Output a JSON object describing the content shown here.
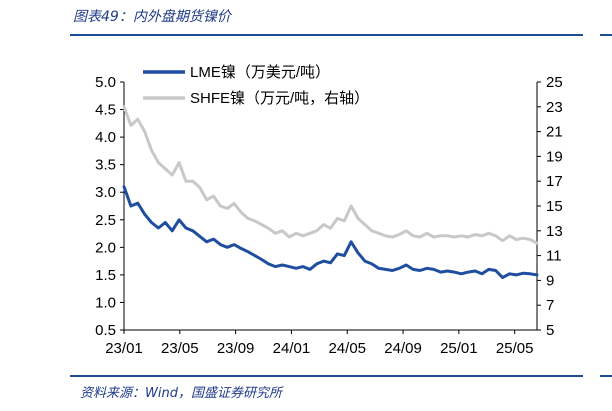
{
  "header": {
    "title": "图表49：内外盘期货镍价"
  },
  "footer": {
    "source": "资料来源：Wind，国盛证券研究所"
  },
  "chart_data": {
    "type": "line",
    "title": "图表49：内外盘期货镍价",
    "categories": [
      "23/01",
      "23/05",
      "23/09",
      "24/01",
      "24/05",
      "24/09",
      "25/01",
      "25/05"
    ],
    "x_range": [
      0,
      30
    ],
    "y_left": {
      "min": 0.5,
      "max": 5.0,
      "ticks": [
        "5.0",
        "4.5",
        "4.0",
        "3.5",
        "3.0",
        "2.5",
        "2.0",
        "1.5",
        "1.0",
        "0.5"
      ]
    },
    "y_right": {
      "min": 5,
      "max": 25,
      "ticks": [
        "25",
        "23",
        "21",
        "19",
        "17",
        "15",
        "13",
        "11",
        "9",
        "7",
        "5"
      ]
    },
    "grid": false,
    "legend_position": "top-left",
    "series": [
      {
        "name": "LME镍（万美元/吨）",
        "axis": "left",
        "color": "#1f4ea0",
        "x": [
          0,
          0.5,
          1,
          1.5,
          2,
          2.5,
          3,
          3.5,
          4,
          4.5,
          5,
          5.5,
          6,
          6.5,
          7,
          7.5,
          8,
          8.5,
          9,
          9.5,
          10,
          10.5,
          11,
          11.5,
          12,
          12.5,
          13,
          13.5,
          14,
          14.5,
          15,
          15.5,
          16,
          16.5,
          17,
          17.5,
          18,
          18.5,
          19,
          19.5,
          20,
          20.5,
          21,
          21.5,
          22,
          22.5,
          23,
          23.5,
          24,
          24.5,
          25,
          25.5,
          26,
          26.5,
          27,
          27.5,
          28,
          28.5,
          29,
          29.5,
          30
        ],
        "values": [
          3.1,
          2.75,
          2.8,
          2.6,
          2.45,
          2.35,
          2.45,
          2.3,
          2.5,
          2.35,
          2.3,
          2.2,
          2.1,
          2.15,
          2.05,
          2.0,
          2.05,
          1.98,
          1.92,
          1.85,
          1.78,
          1.7,
          1.65,
          1.68,
          1.65,
          1.62,
          1.65,
          1.6,
          1.7,
          1.75,
          1.72,
          1.88,
          1.85,
          2.1,
          1.9,
          1.75,
          1.7,
          1.62,
          1.6,
          1.58,
          1.62,
          1.68,
          1.6,
          1.58,
          1.62,
          1.6,
          1.55,
          1.57,
          1.55,
          1.52,
          1.55,
          1.57,
          1.52,
          1.6,
          1.58,
          1.45,
          1.52,
          1.5,
          1.53,
          1.52,
          1.5
        ]
      },
      {
        "name": "SHFE镍（万元/吨，右轴）",
        "axis": "right",
        "color": "#c8c8c8",
        "x": [
          0,
          0.5,
          1,
          1.5,
          2,
          2.5,
          3,
          3.5,
          4,
          4.5,
          5,
          5.5,
          6,
          6.5,
          7,
          7.5,
          8,
          8.5,
          9,
          9.5,
          10,
          10.5,
          11,
          11.5,
          12,
          12.5,
          13,
          13.5,
          14,
          14.5,
          15,
          15.5,
          16,
          16.5,
          17,
          17.5,
          18,
          18.5,
          19,
          19.5,
          20,
          20.5,
          21,
          21.5,
          22,
          22.5,
          23,
          23.5,
          24,
          24.5,
          25,
          25.5,
          26,
          26.5,
          27,
          27.5,
          28,
          28.5,
          29,
          29.5,
          30
        ],
        "values": [
          23.0,
          21.5,
          22.0,
          21.0,
          19.5,
          18.5,
          18.0,
          17.5,
          18.5,
          17.0,
          17.0,
          16.5,
          15.5,
          15.8,
          15.0,
          14.8,
          15.2,
          14.5,
          14.0,
          13.8,
          13.5,
          13.2,
          12.8,
          13.0,
          12.5,
          12.8,
          12.6,
          12.8,
          13.0,
          13.5,
          13.2,
          14.0,
          13.8,
          15.0,
          14.0,
          13.5,
          13.0,
          12.8,
          12.6,
          12.5,
          12.7,
          13.0,
          12.6,
          12.5,
          12.8,
          12.5,
          12.6,
          12.6,
          12.5,
          12.6,
          12.5,
          12.7,
          12.6,
          12.8,
          12.6,
          12.2,
          12.6,
          12.3,
          12.4,
          12.3,
          12.0
        ]
      }
    ]
  }
}
